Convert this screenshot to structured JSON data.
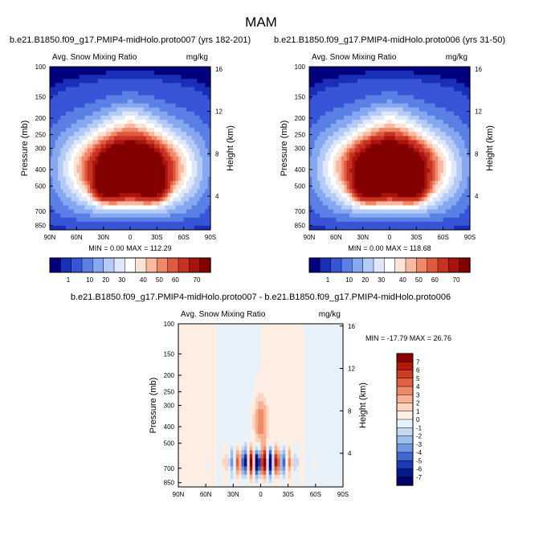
{
  "page_title": "MAM",
  "chart_data": [
    {
      "type": "heatmap",
      "id": "top-left",
      "title": "b.e21.B1850.f09_g17.PMIP4-midHolo.proto007 (yrs 182-201)",
      "left_label": "Avg. Snow Mixing Ratio",
      "right_label": "mg/kg",
      "ylabel": "Pressure (mb)",
      "y2label": "Height (km)",
      "xticks": [
        "90N",
        "60N",
        "30N",
        "0",
        "30S",
        "60S",
        "90S"
      ],
      "yticks": [
        100,
        150,
        200,
        250,
        300,
        400,
        500,
        700,
        850
      ],
      "y2ticks": [
        4,
        8,
        12,
        16
      ],
      "stats": "MIN =   0.00   MAX = 112.29",
      "min": 0.0,
      "max": 112.29,
      "levels": [
        1,
        10,
        20,
        30,
        40,
        50,
        60,
        70
      ],
      "colors": [
        "#00007f",
        "#1a2fb8",
        "#3755d6",
        "#5a80e6",
        "#86a8f0",
        "#b4cbf7",
        "#dfe8fb",
        "#ffffff",
        "#fde2d6",
        "#f9b8a0",
        "#f08868",
        "#e05a40",
        "#c83222",
        "#a8140c",
        "#820000"
      ]
    },
    {
      "type": "heatmap",
      "id": "top-right",
      "title": "b.e21.B1850.f09_g17.PMIP4-midHolo.proto006 (yrs 31-50)",
      "left_label": "Avg. Snow Mixing Ratio",
      "right_label": "mg/kg",
      "ylabel": "Pressure (mb)",
      "y2label": "Height (km)",
      "xticks": [
        "90N",
        "60N",
        "30N",
        "0",
        "30S",
        "60S",
        "90S"
      ],
      "yticks": [
        100,
        150,
        200,
        250,
        300,
        400,
        500,
        700,
        850
      ],
      "y2ticks": [
        4,
        8,
        12,
        16
      ],
      "stats": "MIN =   0.00   MAX = 118.68",
      "min": 0.0,
      "max": 118.68,
      "levels": [
        1,
        10,
        20,
        30,
        40,
        50,
        60,
        70
      ]
    },
    {
      "type": "heatmap",
      "id": "difference",
      "title": "b.e21.B1850.f09_g17.PMIP4-midHolo.proto007 - b.e21.B1850.f09_g17.PMIP4-midHolo.proto006",
      "left_label": "Avg. Snow Mixing Ratio",
      "right_label": "mg/kg",
      "ylabel": "Pressure (mb)",
      "y2label": "Height (km)",
      "xticks": [
        "90N",
        "60N",
        "30N",
        "0",
        "30S",
        "60S",
        "90S"
      ],
      "yticks": [
        100,
        150,
        200,
        250,
        300,
        400,
        500,
        700,
        850
      ],
      "y2ticks": [
        4,
        8,
        12,
        16
      ],
      "stats": "MIN = -17.79  MAX =  26.76",
      "min": -17.79,
      "max": 26.76,
      "levels": [
        7,
        6,
        5,
        4,
        3,
        2,
        1,
        0,
        -1,
        -2,
        -3,
        -4,
        -5,
        -6,
        -7
      ],
      "colors": [
        "#8c0000",
        "#b4180c",
        "#cf3a22",
        "#e3603f",
        "#f08a66",
        "#f7b293",
        "#fcd5c0",
        "#fdeee3",
        "#e8f2fb",
        "#c4daf3",
        "#9dbfec",
        "#6f98e0",
        "#4167d2",
        "#1a39b4",
        "#06188e",
        "#00006a"
      ]
    }
  ]
}
